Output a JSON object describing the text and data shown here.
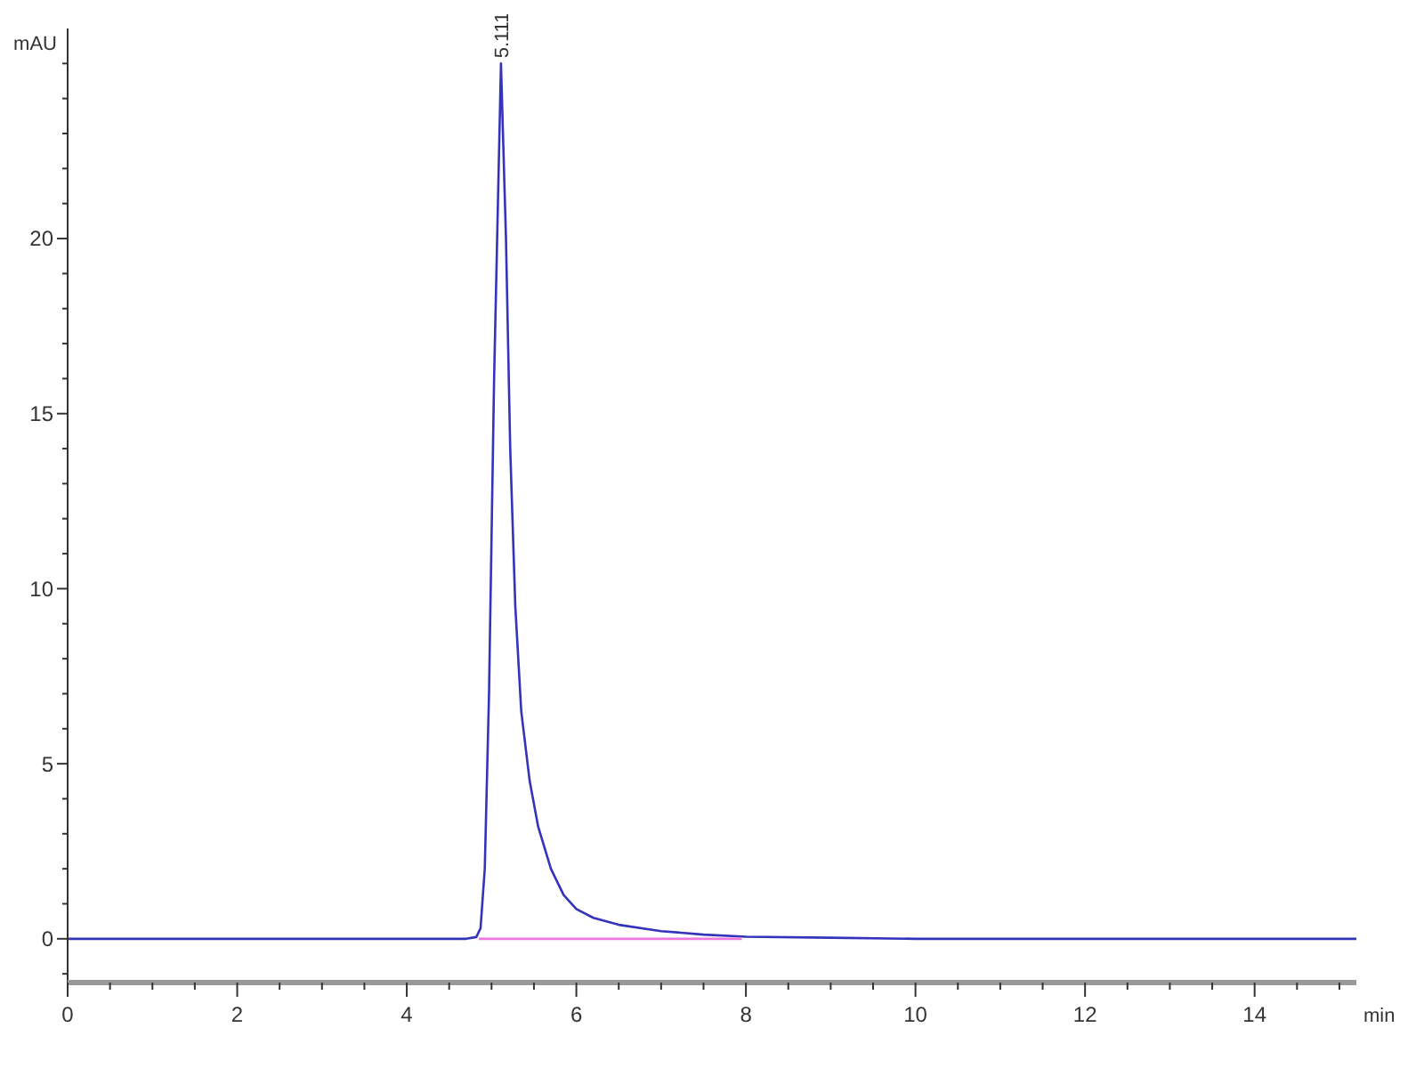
{
  "chart_data": {
    "type": "line",
    "xlabel": "min",
    "ylabel": "mAU",
    "xlim": [
      0,
      15.2
    ],
    "ylim": [
      -1.25,
      26
    ],
    "xticks": [
      0,
      {
        "value": 0.5,
        "label": null
      },
      2,
      {
        "value": 1,
        "label": null
      },
      {
        "value": 1.5,
        "label": null
      },
      {
        "value": 2.5,
        "label": null
      },
      {
        "value": 3,
        "label": null
      },
      {
        "value": 3.5,
        "label": null
      },
      4,
      {
        "value": 4.5,
        "label": null
      },
      {
        "value": 5,
        "label": null
      },
      {
        "value": 5.5,
        "label": null
      },
      6,
      {
        "value": 6.5,
        "label": null
      },
      {
        "value": 7,
        "label": null
      },
      {
        "value": 7.5,
        "label": null
      },
      8,
      {
        "value": 8.5,
        "label": null
      },
      {
        "value": 9,
        "label": null
      },
      {
        "value": 9.5,
        "label": null
      },
      10,
      {
        "value": 10.5,
        "label": null
      },
      {
        "value": 11,
        "label": null
      },
      {
        "value": 11.5,
        "label": null
      },
      12,
      {
        "value": 12.5,
        "label": null
      },
      {
        "value": 13,
        "label": null
      },
      {
        "value": 13.5,
        "label": null
      },
      14,
      {
        "value": 14.5,
        "label": null
      },
      {
        "value": 15,
        "label": null
      }
    ],
    "yticks": [
      {
        "value": -1,
        "label": null
      },
      0,
      {
        "value": 1,
        "label": null
      },
      {
        "value": 2,
        "label": null
      },
      {
        "value": 3,
        "label": null
      },
      {
        "value": 4,
        "label": null
      },
      5,
      {
        "value": 6,
        "label": null
      },
      {
        "value": 7,
        "label": null
      },
      {
        "value": 8,
        "label": null
      },
      {
        "value": 9,
        "label": null
      },
      10,
      {
        "value": 11,
        "label": null
      },
      {
        "value": 12,
        "label": null
      },
      {
        "value": 13,
        "label": null
      },
      {
        "value": 14,
        "label": null
      },
      15,
      {
        "value": 16,
        "label": null
      },
      {
        "value": 17,
        "label": null
      },
      {
        "value": 18,
        "label": null
      },
      {
        "value": 19,
        "label": null
      },
      20,
      {
        "value": 21,
        "label": null
      },
      {
        "value": 22,
        "label": null
      },
      {
        "value": 23,
        "label": null
      },
      {
        "value": 24,
        "label": null
      },
      {
        "value": 25,
        "label": null
      }
    ],
    "grid": false,
    "marker": "none",
    "line_style": "solid",
    "series": [
      {
        "color": "#3333bb",
        "x": [
          0,
          1,
          2,
          3,
          4,
          4.7,
          4.82,
          4.87,
          4.92,
          4.97,
          5.03,
          5.111,
          5.17,
          5.22,
          5.28,
          5.35,
          5.45,
          5.55,
          5.7,
          5.85,
          6.0,
          6.2,
          6.5,
          7.0,
          7.5,
          8.0,
          9.0,
          10.0,
          12.0,
          15.2
        ],
        "values": [
          0,
          0,
          0,
          0,
          0,
          0,
          0.05,
          0.3,
          2,
          7,
          16,
          25,
          20,
          14,
          9.5,
          6.5,
          4.5,
          3.2,
          2,
          1.25,
          0.85,
          0.6,
          0.4,
          0.22,
          0.12,
          0.06,
          0.03,
          0,
          0,
          0
        ]
      },
      {
        "color": "#ee77dd",
        "x": [
          4.85,
          7.95
        ],
        "values": [
          0,
          0
        ]
      }
    ],
    "annotations": [
      {
        "text": "5.111",
        "x": 5.111,
        "y": 25
      }
    ]
  }
}
